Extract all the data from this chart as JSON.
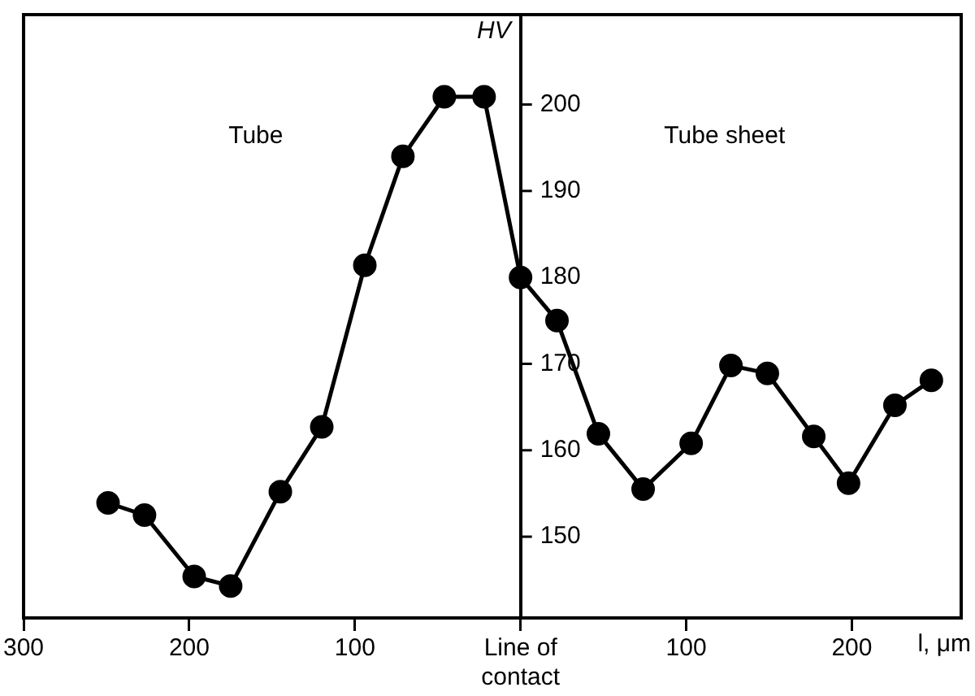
{
  "chart_data": {
    "type": "line",
    "ylabel": "HV",
    "xlabel": "l, μm",
    "annotations": [
      "Tube",
      "Tube sheet"
    ],
    "x": [
      -249,
      -227,
      -197,
      -175,
      -145,
      -120,
      -94,
      -71,
      -46,
      -22,
      0,
      22,
      47,
      74,
      103,
      127,
      149,
      177,
      198,
      226,
      248
    ],
    "series": [
      {
        "color": "#000000",
        "values": [
          153.9,
          152.5,
          145.4,
          144.3,
          155.2,
          162.7,
          181.4,
          194.0,
          200.9,
          200.9,
          180.0,
          175.0,
          161.9,
          155.5,
          160.8,
          169.8,
          168.9,
          161.6,
          156.2,
          165.2,
          168.1
        ]
      }
    ],
    "xlim": [
      -300,
      266
    ],
    "xticks": [
      {
        "value": -300,
        "label": "300"
      },
      {
        "value": -200,
        "label": "200"
      },
      {
        "value": -100,
        "label": "100"
      },
      {
        "value": 0,
        "label": "Line of contact"
      },
      100,
      200
    ],
    "ylim": [
      140.6,
      210.4
    ],
    "yticks": [
      150,
      160,
      170,
      180,
      190,
      200
    ],
    "grid": false,
    "legend": false,
    "marker": "circle",
    "line_style": "solid"
  }
}
